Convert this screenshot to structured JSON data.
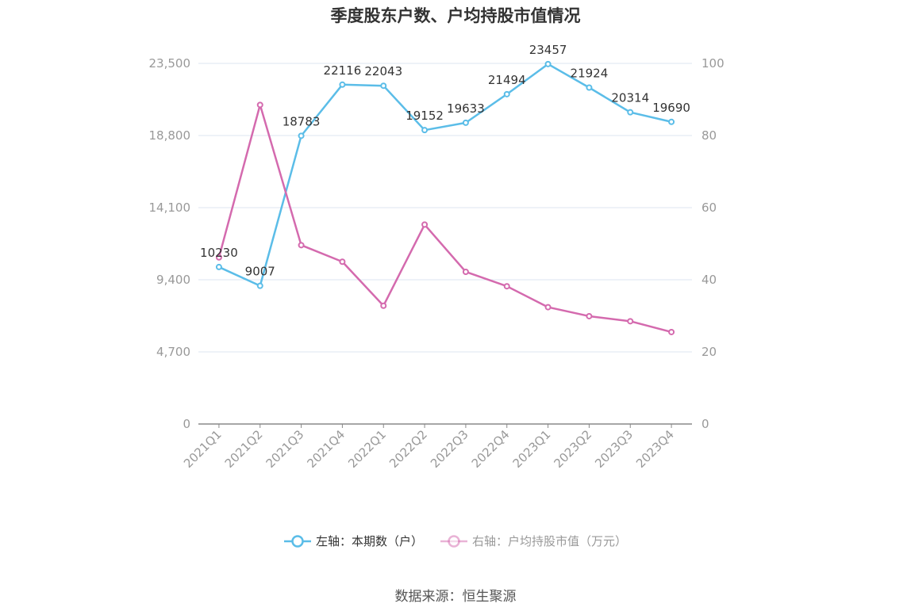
{
  "title": "季度股东户数、户均持股市值情况",
  "source": "数据来源：恒生聚源",
  "colors": {
    "left_series": "#5bbde8",
    "right_series": "#d46aae",
    "axis_text": "#999999",
    "grid": "#dce6f0",
    "label_text": "#333333"
  },
  "legend": [
    {
      "label": "左轴：本期数（户）",
      "color": "#5bbde8",
      "text_color": "#333333"
    },
    {
      "label": "右轴：户均持股市值（万元）",
      "color": "#d46aae",
      "text_color": "#999999"
    }
  ],
  "chart_data": {
    "type": "line",
    "categories": [
      "2021Q1",
      "2021Q2",
      "2021Q3",
      "2021Q4",
      "2022Q1",
      "2022Q2",
      "2022Q3",
      "2022Q4",
      "2023Q1",
      "2023Q2",
      "2023Q3",
      "2023Q4"
    ],
    "left_axis": {
      "ylim": [
        0,
        23500
      ],
      "ticks": [
        0,
        4700,
        9400,
        14100,
        18800,
        23500
      ],
      "tick_labels": [
        "0",
        "4,700",
        "9,400",
        "14,100",
        "18,800",
        "23,500"
      ]
    },
    "right_axis": {
      "ylim": [
        0,
        100
      ],
      "ticks": [
        0,
        20,
        40,
        60,
        80,
        100
      ],
      "tick_labels": [
        "0",
        "20",
        "40",
        "60",
        "80",
        "100"
      ]
    },
    "series": [
      {
        "name": "左轴：本期数（户）",
        "axis": "left",
        "values": [
          10230,
          9007,
          18783,
          22116,
          22043,
          19152,
          19633,
          21494,
          23457,
          21924,
          20314,
          19690
        ],
        "labels": [
          "10230",
          "9007",
          "18783",
          "22116",
          "22043",
          "19152",
          "19633",
          "21494",
          "23457",
          "21924",
          "20314",
          "19690"
        ]
      },
      {
        "name": "右轴：户均持股市值（万元）",
        "axis": "right",
        "values": [
          46.2,
          88.5,
          49.6,
          45.0,
          32.8,
          55.3,
          42.2,
          38.2,
          32.4,
          29.9,
          28.5,
          25.5
        ]
      }
    ],
    "grid": true,
    "legend_position": "bottom"
  }
}
